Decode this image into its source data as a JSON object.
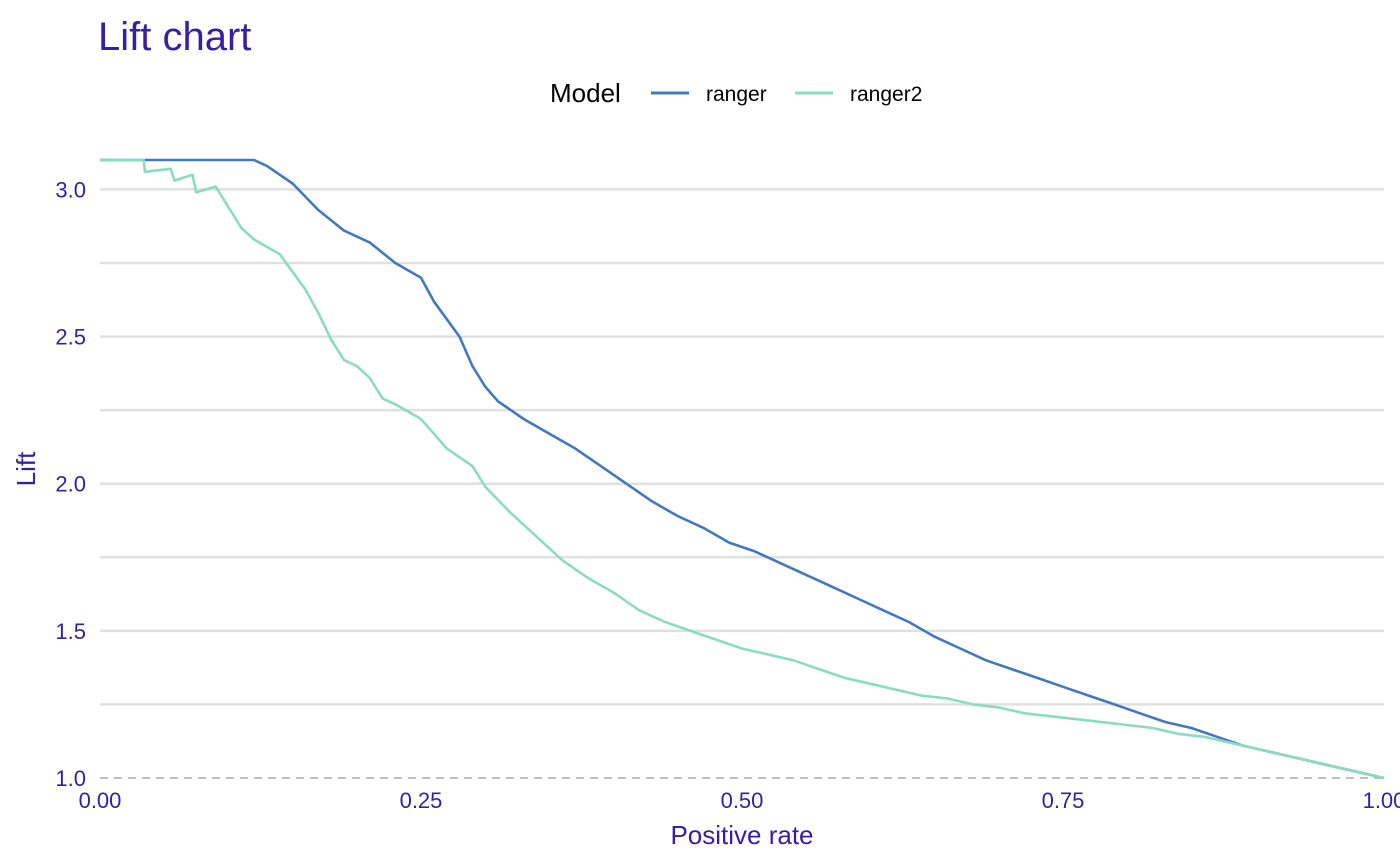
{
  "chart_data": {
    "type": "line",
    "title": "Lift chart",
    "xlabel": "Positive rate",
    "ylabel": "Lift",
    "xlim": [
      0,
      1
    ],
    "ylim": [
      1,
      3.1
    ],
    "x_ticks": [
      0,
      0.25,
      0.5,
      0.75,
      1
    ],
    "x_tick_labels": [
      "0.00",
      "0.25",
      "0.50",
      "0.75",
      "1.00"
    ],
    "y_ticks": [
      1,
      1.5,
      2,
      2.5,
      3
    ],
    "y_tick_labels": [
      "1.0",
      "1.5",
      "2.0",
      "2.5",
      "3.0"
    ],
    "grid": true,
    "baseline": 1,
    "legend": {
      "title": "Model",
      "position": "top"
    },
    "colors": {
      "text": "#371EA3",
      "grid": "#E0E0E0",
      "baseline": "#AAAAAA"
    },
    "series": [
      {
        "name": "ranger",
        "color": "#4378BF",
        "points": [
          [
            0.0,
            3.1
          ],
          [
            0.12,
            3.1
          ],
          [
            0.13,
            3.08
          ],
          [
            0.15,
            3.02
          ],
          [
            0.17,
            2.93
          ],
          [
            0.19,
            2.86
          ],
          [
            0.21,
            2.82
          ],
          [
            0.23,
            2.75
          ],
          [
            0.25,
            2.7
          ],
          [
            0.26,
            2.62
          ],
          [
            0.28,
            2.5
          ],
          [
            0.29,
            2.4
          ],
          [
            0.3,
            2.33
          ],
          [
            0.31,
            2.28
          ],
          [
            0.33,
            2.22
          ],
          [
            0.35,
            2.17
          ],
          [
            0.37,
            2.12
          ],
          [
            0.39,
            2.06
          ],
          [
            0.41,
            2.0
          ],
          [
            0.43,
            1.94
          ],
          [
            0.45,
            1.89
          ],
          [
            0.47,
            1.85
          ],
          [
            0.49,
            1.8
          ],
          [
            0.51,
            1.77
          ],
          [
            0.53,
            1.73
          ],
          [
            0.55,
            1.69
          ],
          [
            0.57,
            1.65
          ],
          [
            0.59,
            1.61
          ],
          [
            0.61,
            1.57
          ],
          [
            0.63,
            1.53
          ],
          [
            0.65,
            1.48
          ],
          [
            0.67,
            1.44
          ],
          [
            0.69,
            1.4
          ],
          [
            0.71,
            1.37
          ],
          [
            0.73,
            1.34
          ],
          [
            0.75,
            1.31
          ],
          [
            0.77,
            1.28
          ],
          [
            0.79,
            1.25
          ],
          [
            0.81,
            1.22
          ],
          [
            0.83,
            1.19
          ],
          [
            0.85,
            1.17
          ],
          [
            0.87,
            1.14
          ],
          [
            0.89,
            1.11
          ],
          [
            0.91,
            1.09
          ],
          [
            0.93,
            1.07
          ],
          [
            0.95,
            1.05
          ],
          [
            0.97,
            1.03
          ],
          [
            1.0,
            1.0
          ]
        ]
      },
      {
        "name": "ranger2",
        "color": "#8BDCBE",
        "points": [
          [
            0.0,
            3.1
          ],
          [
            0.034,
            3.1
          ],
          [
            0.035,
            3.06
          ],
          [
            0.055,
            3.07
          ],
          [
            0.058,
            3.03
          ],
          [
            0.072,
            3.05
          ],
          [
            0.075,
            2.99
          ],
          [
            0.09,
            3.01
          ],
          [
            0.1,
            2.94
          ],
          [
            0.11,
            2.87
          ],
          [
            0.12,
            2.83
          ],
          [
            0.14,
            2.78
          ],
          [
            0.15,
            2.72
          ],
          [
            0.16,
            2.66
          ],
          [
            0.17,
            2.58
          ],
          [
            0.18,
            2.49
          ],
          [
            0.19,
            2.42
          ],
          [
            0.2,
            2.4
          ],
          [
            0.21,
            2.36
          ],
          [
            0.22,
            2.29
          ],
          [
            0.23,
            2.27
          ],
          [
            0.25,
            2.22
          ],
          [
            0.26,
            2.17
          ],
          [
            0.27,
            2.12
          ],
          [
            0.29,
            2.06
          ],
          [
            0.3,
            1.99
          ],
          [
            0.32,
            1.9
          ],
          [
            0.34,
            1.82
          ],
          [
            0.36,
            1.74
          ],
          [
            0.38,
            1.68
          ],
          [
            0.4,
            1.63
          ],
          [
            0.42,
            1.57
          ],
          [
            0.44,
            1.53
          ],
          [
            0.46,
            1.5
          ],
          [
            0.48,
            1.47
          ],
          [
            0.5,
            1.44
          ],
          [
            0.52,
            1.42
          ],
          [
            0.54,
            1.4
          ],
          [
            0.56,
            1.37
          ],
          [
            0.58,
            1.34
          ],
          [
            0.6,
            1.32
          ],
          [
            0.62,
            1.3
          ],
          [
            0.64,
            1.28
          ],
          [
            0.66,
            1.27
          ],
          [
            0.68,
            1.25
          ],
          [
            0.7,
            1.24
          ],
          [
            0.72,
            1.22
          ],
          [
            0.74,
            1.21
          ],
          [
            0.76,
            1.2
          ],
          [
            0.78,
            1.19
          ],
          [
            0.8,
            1.18
          ],
          [
            0.82,
            1.17
          ],
          [
            0.84,
            1.15
          ],
          [
            0.86,
            1.14
          ],
          [
            0.88,
            1.12
          ],
          [
            0.9,
            1.1
          ],
          [
            0.92,
            1.08
          ],
          [
            0.94,
            1.06
          ],
          [
            0.96,
            1.04
          ],
          [
            0.98,
            1.02
          ],
          [
            1.0,
            1.0
          ]
        ]
      }
    ]
  }
}
